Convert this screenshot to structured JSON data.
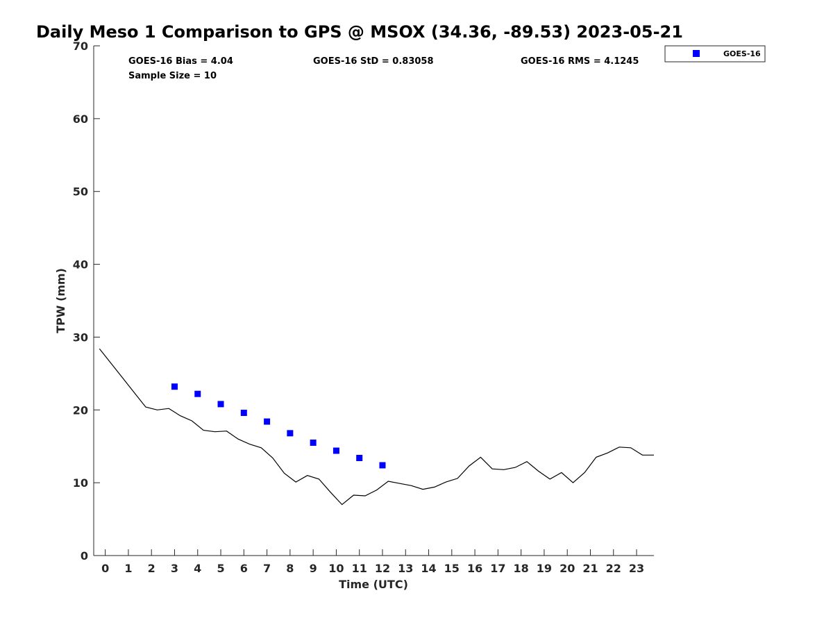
{
  "chart_data": {
    "type": "scatter",
    "title": "Daily Meso 1 Comparison to GPS @ MSOX (34.36, -89.53) 2023-05-21",
    "xlabel": "Time (UTC)",
    "ylabel": "TPW (mm)",
    "xlim": [
      -0.5,
      23.75
    ],
    "ylim": [
      0,
      70
    ],
    "x_ticks": [
      0,
      1,
      2,
      3,
      4,
      5,
      6,
      7,
      8,
      9,
      10,
      11,
      12,
      13,
      14,
      15,
      16,
      17,
      18,
      19,
      20,
      21,
      22,
      23
    ],
    "y_ticks": [
      0,
      10,
      20,
      30,
      40,
      50,
      60,
      70
    ],
    "grid": false,
    "legend_position": "top-right outside",
    "stats": {
      "bias": "GOES-16 Bias = 4.04",
      "std": "GOES-16 StD = 0.83058",
      "rms": "GOES-16 RMS = 4.1245",
      "sample": "Sample Size = 10"
    },
    "series": [
      {
        "name": "GOES-16",
        "kind": "scatter",
        "marker": "square",
        "color": "#0000ff",
        "x": [
          3,
          4,
          5,
          6,
          7,
          8,
          9,
          10,
          11,
          12
        ],
        "y": [
          23.2,
          22.2,
          20.8,
          19.6,
          18.4,
          16.8,
          15.5,
          14.4,
          13.4,
          12.4
        ]
      },
      {
        "kind": "line",
        "color": "#000000",
        "x": [
          -0.25,
          0.25,
          0.75,
          1.25,
          1.75,
          2.25,
          2.75,
          3.25,
          3.75,
          4.25,
          4.75,
          5.25,
          5.75,
          6.25,
          6.75,
          7.25,
          7.75,
          8.25,
          8.75,
          9.25,
          9.75,
          10.25,
          10.75,
          11.25,
          11.75,
          12.25,
          12.75,
          13.25,
          13.75,
          14.25,
          14.75,
          15.25,
          15.75,
          16.25,
          16.75,
          17.25,
          17.75,
          18.25,
          18.75,
          19.25,
          19.75,
          20.25,
          20.75,
          21.25,
          21.75,
          22.25,
          22.75,
          23.25,
          23.75
        ],
        "y": [
          28.4,
          26.4,
          24.4,
          22.4,
          20.4,
          20.0,
          20.2,
          19.2,
          18.5,
          17.2,
          17.0,
          17.1,
          16.0,
          15.3,
          14.8,
          13.4,
          11.3,
          10.1,
          11.0,
          10.5,
          8.7,
          7.0,
          8.3,
          8.2,
          9.0,
          10.2,
          9.9,
          9.6,
          9.1,
          9.4,
          10.1,
          10.6,
          12.3,
          13.5,
          11.9,
          11.8,
          12.1,
          12.9,
          11.6,
          10.5,
          11.4,
          10.0,
          11.4,
          13.5,
          14.1,
          14.9,
          14.8,
          13.8,
          13.8
        ]
      }
    ]
  }
}
